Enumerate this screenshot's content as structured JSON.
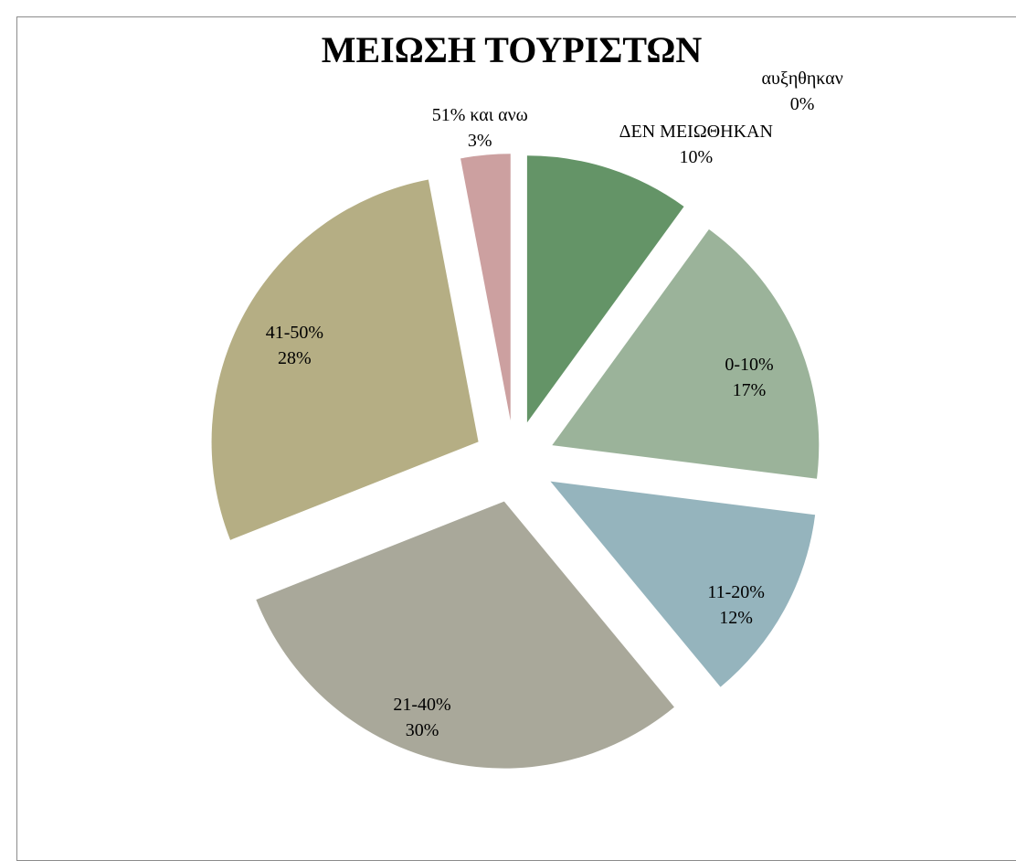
{
  "chart_data": {
    "type": "pie",
    "title": "ΜΕΙΩΣΗ ΤΟΥΡΙΣΤΩΝ",
    "categories": [
      "αυξηθηκαν",
      "ΔΕΝ ΜΕΙΩΘΗΚΑΝ",
      "0-10%",
      "11-20%",
      "21-40%",
      "41-50%",
      "51% και ανω"
    ],
    "values": [
      0,
      10,
      17,
      12,
      30,
      28,
      3
    ],
    "value_labels": [
      "0%",
      "10%",
      "17%",
      "12%",
      "30%",
      "28%",
      "3%"
    ],
    "colors": [
      "#8a9a5b",
      "#649467",
      "#9bb39a",
      "#95b4bd",
      "#a9a89a",
      "#b5ae84",
      "#cca0a0"
    ]
  }
}
